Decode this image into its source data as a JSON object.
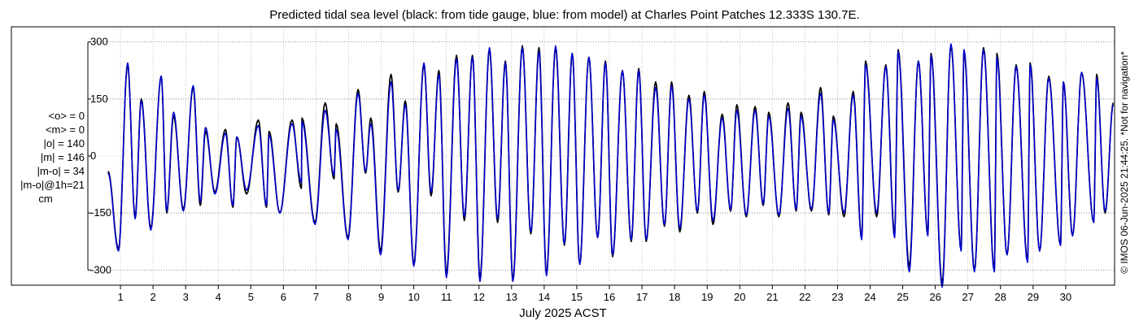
{
  "chart_data": {
    "type": "line",
    "title": "Predicted tidal sea level (black: from tide gauge, blue: from model) at Charles Point Patches 12.333S 130.7E.",
    "xlabel": "July 2025 ACST",
    "ylabel": "",
    "x_range_days": [
      0,
      31.5
    ],
    "y_range": [
      -340,
      340
    ],
    "ylim": [
      -300,
      300
    ],
    "y_ticks": [
      300,
      150,
      0,
      -150,
      -300
    ],
    "x_ticks": [
      1,
      2,
      3,
      4,
      5,
      6,
      7,
      8,
      9,
      10,
      11,
      12,
      13,
      14,
      15,
      16,
      17,
      18,
      19,
      20,
      21,
      22,
      23,
      24,
      25,
      26,
      27,
      28,
      29,
      30
    ],
    "grid": "dotted",
    "series": [
      {
        "name": "tide gauge",
        "color": "#000000",
        "x": [
          0.62,
          0.94,
          1.22,
          1.45,
          1.64,
          1.93,
          2.25,
          2.42,
          2.63,
          2.93,
          3.23,
          3.45,
          3.61,
          3.9,
          4.22,
          4.45,
          4.57,
          4.87,
          5.23,
          5.48,
          5.56,
          5.89,
          6.26,
          6.55,
          6.57,
          6.97,
          7.28,
          7.55,
          7.62,
          7.98,
          8.29,
          8.52,
          8.68,
          8.98,
          9.3,
          9.52,
          9.74,
          10.0,
          10.31,
          10.53,
          10.77,
          11.0,
          11.31,
          11.55,
          11.8,
          12.03,
          12.32,
          12.57,
          12.81,
          13.04,
          13.33,
          13.59,
          13.84,
          14.07,
          14.35,
          14.62,
          14.86,
          15.09,
          15.37,
          15.64,
          15.88,
          16.1,
          16.4,
          16.67,
          16.9,
          17.13,
          17.42,
          17.69,
          17.91,
          18.16,
          18.44,
          18.7,
          18.91,
          19.18,
          19.46,
          19.72,
          19.91,
          20.2,
          20.47,
          20.72,
          20.89,
          21.2,
          21.48,
          21.73,
          21.88,
          22.2,
          22.48,
          22.73,
          22.87,
          23.2,
          23.48,
          23.74,
          23.86,
          24.2,
          24.48,
          24.75,
          24.86,
          25.2,
          25.48,
          25.77,
          25.87,
          26.21,
          26.48,
          26.79,
          26.88,
          27.2,
          27.48,
          27.81,
          27.89,
          28.2,
          28.48,
          28.83,
          28.91,
          29.2,
          29.48,
          29.84,
          29.93,
          30.21,
          30.49,
          30.86,
          30.95,
          31.21,
          31.46
        ],
        "y": [
          -40,
          -245,
          240,
          -160,
          150,
          -190,
          210,
          -150,
          105,
          -140,
          180,
          -130,
          65,
          -95,
          70,
          -135,
          50,
          -100,
          95,
          -135,
          65,
          -150,
          95,
          -85,
          100,
          -175,
          140,
          -60,
          85,
          -215,
          175,
          -45,
          100,
          -250,
          215,
          -95,
          145,
          -285,
          240,
          -105,
          225,
          -310,
          265,
          -170,
          265,
          -320,
          280,
          -175,
          250,
          -325,
          290,
          -205,
          285,
          -310,
          285,
          -235,
          270,
          -285,
          260,
          -215,
          250,
          -265,
          225,
          -225,
          230,
          -225,
          195,
          -185,
          195,
          -200,
          160,
          -150,
          170,
          -180,
          110,
          -145,
          135,
          -160,
          130,
          -130,
          115,
          -160,
          140,
          -145,
          115,
          -145,
          180,
          -155,
          105,
          -160,
          170,
          -215,
          250,
          -160,
          240,
          -205,
          280,
          -290,
          250,
          -205,
          270,
          -335,
          290,
          -245,
          275,
          -300,
          285,
          -300,
          270,
          -260,
          240,
          -275,
          245,
          -250,
          210,
          -235,
          195,
          -210,
          220,
          -175,
          215,
          -150,
          140
        ]
      },
      {
        "name": "model",
        "color": "#0000cc",
        "x": [
          0.62,
          0.94,
          1.22,
          1.45,
          1.64,
          1.93,
          2.25,
          2.42,
          2.63,
          2.93,
          3.23,
          3.45,
          3.61,
          3.9,
          4.22,
          4.45,
          4.57,
          4.87,
          5.23,
          5.48,
          5.56,
          5.89,
          6.26,
          6.55,
          6.57,
          6.97,
          7.28,
          7.55,
          7.62,
          7.98,
          8.29,
          8.52,
          8.68,
          8.98,
          9.3,
          9.52,
          9.74,
          10.0,
          10.31,
          10.53,
          10.77,
          11.0,
          11.31,
          11.55,
          11.8,
          12.03,
          12.32,
          12.57,
          12.81,
          13.04,
          13.33,
          13.59,
          13.84,
          14.07,
          14.35,
          14.62,
          14.86,
          15.09,
          15.37,
          15.64,
          15.88,
          16.1,
          16.4,
          16.67,
          16.9,
          17.13,
          17.42,
          17.69,
          17.91,
          18.16,
          18.44,
          18.7,
          18.91,
          19.18,
          19.46,
          19.72,
          19.91,
          20.2,
          20.47,
          20.72,
          20.89,
          21.2,
          21.48,
          21.73,
          21.88,
          22.2,
          22.48,
          22.73,
          22.87,
          23.2,
          23.48,
          23.74,
          23.86,
          24.2,
          24.48,
          24.75,
          24.86,
          25.2,
          25.48,
          25.77,
          25.87,
          26.21,
          26.48,
          26.79,
          26.88,
          27.2,
          27.48,
          27.81,
          27.89,
          28.2,
          28.48,
          28.83,
          28.91,
          29.2,
          29.48,
          29.84,
          29.93,
          30.21,
          30.49,
          30.86,
          30.95,
          31.21,
          31.46
        ],
        "y": [
          -45,
          -250,
          245,
          -165,
          145,
          -195,
          210,
          -145,
          115,
          -145,
          185,
          -120,
          75,
          -100,
          60,
          -130,
          50,
          -90,
          80,
          -130,
          55,
          -150,
          85,
          -70,
          90,
          -180,
          120,
          -50,
          70,
          -220,
          165,
          -40,
          85,
          -260,
          195,
          -90,
          135,
          -290,
          245,
          -95,
          215,
          -320,
          255,
          -160,
          260,
          -330,
          285,
          -165,
          245,
          -330,
          285,
          -200,
          275,
          -315,
          290,
          -230,
          270,
          -285,
          260,
          -215,
          245,
          -260,
          225,
          -220,
          225,
          -220,
          180,
          -180,
          185,
          -190,
          150,
          -145,
          160,
          -170,
          100,
          -140,
          120,
          -155,
          120,
          -125,
          105,
          -155,
          125,
          -140,
          105,
          -140,
          165,
          -150,
          95,
          -150,
          160,
          -220,
          240,
          -150,
          235,
          -215,
          275,
          -305,
          250,
          -210,
          265,
          -345,
          295,
          -250,
          280,
          -305,
          280,
          -305,
          260,
          -260,
          235,
          -280,
          240,
          -250,
          205,
          -235,
          195,
          -210,
          220,
          -175,
          205,
          -145,
          135
        ]
      }
    ],
    "stats": {
      "o_mean": "<o> = 0",
      "m_mean": "<m> = 0",
      "o_abs": "|o| = 140",
      "m_abs": "|m| = 146",
      "mo": "|m-o| = 34",
      "mo_1h": "|m-o|@1h=21",
      "unit": "cm"
    },
    "copyright": "© IMOS 06-Jun-2025 21:44:25.  *Not for navigation*"
  }
}
